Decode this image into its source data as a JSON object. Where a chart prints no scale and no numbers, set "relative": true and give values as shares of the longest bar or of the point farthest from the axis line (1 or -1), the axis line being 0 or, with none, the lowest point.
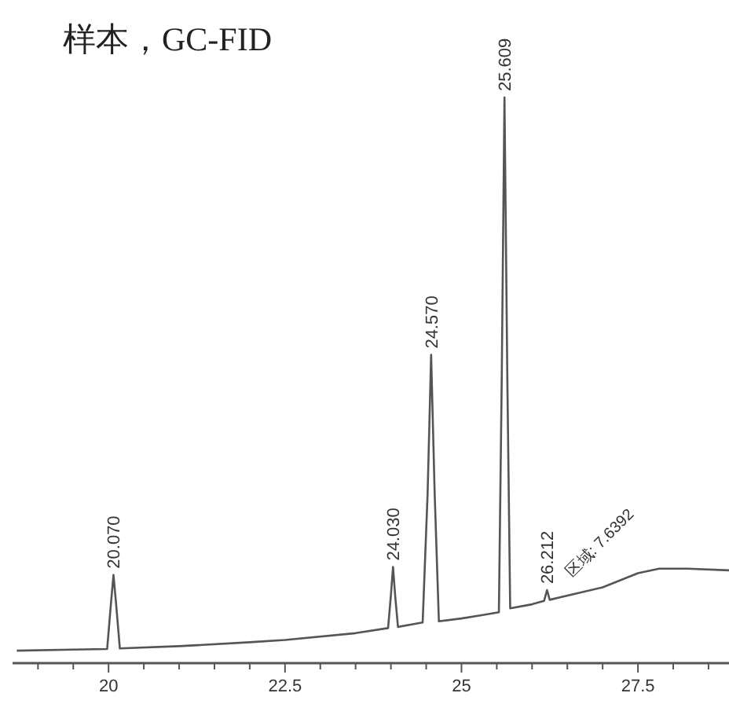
{
  "chart_data": {
    "type": "line",
    "title": "样本，GC-FID",
    "relative": true,
    "xlim": [
      18.64,
      28.79
    ],
    "xticks": [
      {
        "value": 19,
        "label": null
      },
      {
        "value": 19.5,
        "label": null
      },
      20,
      {
        "value": 20.5,
        "label": null
      },
      {
        "value": 21,
        "label": null
      },
      {
        "value": 21.5,
        "label": null
      },
      {
        "value": 22,
        "label": null
      },
      22.5,
      {
        "value": 23,
        "label": null
      },
      {
        "value": 23.5,
        "label": null
      },
      {
        "value": 24,
        "label": null
      },
      {
        "value": 24.5,
        "label": null
      },
      25,
      {
        "value": 25.5,
        "label": null
      },
      {
        "value": 26,
        "label": null
      },
      {
        "value": 26.5,
        "label": null
      },
      {
        "value": 27,
        "label": null
      },
      27.5,
      {
        "value": 28,
        "label": null
      },
      {
        "value": 28.5,
        "label": null
      }
    ],
    "series": [
      {
        "color": "#555555",
        "x": [
          18.7,
          19.5,
          19.98,
          20.03,
          20.07,
          20.11,
          20.16,
          21,
          22,
          22.5,
          23.5,
          23.96,
          24.0,
          24.03,
          24.06,
          24.1,
          24.45,
          24.52,
          24.57,
          24.62,
          24.68,
          25,
          25.3,
          25.53,
          25.57,
          25.609,
          25.65,
          25.69,
          26.0,
          26.17,
          26.212,
          26.25,
          27,
          27.5,
          27.8,
          28.2,
          28.79
        ],
        "values": [
          0.022,
          0.024,
          0.025,
          0.1,
          0.156,
          0.1,
          0.026,
          0.03,
          0.037,
          0.041,
          0.053,
          0.062,
          0.12,
          0.17,
          0.12,
          0.064,
          0.072,
          0.3,
          0.545,
          0.3,
          0.074,
          0.079,
          0.085,
          0.09,
          0.5,
          1,
          0.5,
          0.097,
          0.104,
          0.11,
          0.129,
          0.112,
          0.134,
          0.159,
          0.167,
          0.167,
          0.164
        ]
      }
    ],
    "annotations": [
      {
        "text": "20.070",
        "x": 20.07,
        "y": 0.156
      },
      {
        "text": "24.030",
        "x": 24.03,
        "y": 0.17
      },
      {
        "text": "24.570",
        "x": 24.57,
        "y": 0.545
      },
      {
        "text": "25.609",
        "x": 25.609,
        "y": 1
      },
      {
        "text": "26.212",
        "x": 26.212,
        "y": 0.129
      },
      {
        "text": "区域: 7.6392",
        "x": 26.212,
        "y": 0.129
      }
    ]
  }
}
